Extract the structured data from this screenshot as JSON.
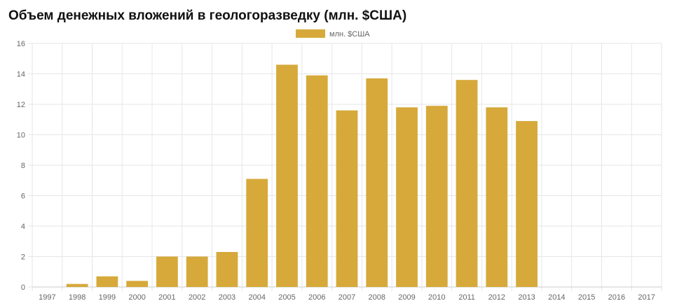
{
  "chart_data": {
    "type": "bar",
    "title": "Объем денежных вложений в геологоразведку (млн. $США)",
    "categories": [
      "1997",
      "1998",
      "1999",
      "2000",
      "2001",
      "2002",
      "2003",
      "2004",
      "2005",
      "2006",
      "2007",
      "2008",
      "2009",
      "2010",
      "2011",
      "2012",
      "2013",
      "2014",
      "2015",
      "2016",
      "2017"
    ],
    "series": [
      {
        "name": "млн. $США",
        "color": "#d6a93a",
        "values": [
          0,
          0.2,
          0.7,
          0.4,
          2.0,
          2.0,
          2.3,
          7.1,
          14.6,
          13.9,
          11.6,
          13.7,
          11.8,
          11.9,
          13.6,
          11.8,
          10.9,
          0,
          0,
          0,
          0
        ]
      }
    ],
    "ylim": [
      0,
      16
    ],
    "yticks": [
      0,
      2,
      4,
      6,
      8,
      10,
      12,
      14,
      16
    ],
    "grid": true,
    "legend_position": "top-center"
  }
}
